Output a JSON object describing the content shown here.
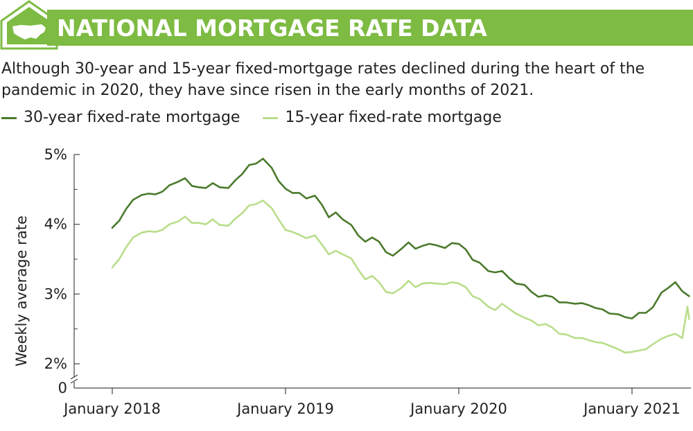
{
  "header": {
    "title": "NATIONAL MORTGAGE RATE DATA",
    "subtitle": "Although 30-year and 15-year fixed-mortgage rates declined during the heart of the pandemic in 2020, they have since risen in the early months of 2021.",
    "logo_icon": "house-with-us-map-icon",
    "banner_color": "#7dbb42"
  },
  "chart_data": {
    "type": "line",
    "title": "",
    "ylabel": "Weekly average rate",
    "xlabel": "",
    "ylim": [
      2,
      5
    ],
    "y_ticks": [
      "0",
      "2%",
      "3%",
      "4%",
      "5%"
    ],
    "y_axis_break": true,
    "x_ticks": [
      "January 2018",
      "January 2019",
      "January 2020",
      "January 2021"
    ],
    "x_tick_values": [
      2018.0,
      2019.0,
      2020.0,
      2021.0
    ],
    "grid": false,
    "legend_position": "top-left",
    "series": [
      {
        "name": "30-year fixed-rate mortgage",
        "color": "#4a7a2c",
        "x": [
          2018.0,
          2018.04,
          2018.08,
          2018.12,
          2018.17,
          2018.21,
          2018.25,
          2018.29,
          2018.33,
          2018.38,
          2018.42,
          2018.46,
          2018.5,
          2018.54,
          2018.58,
          2018.62,
          2018.67,
          2018.71,
          2018.75,
          2018.79,
          2018.83,
          2018.87,
          2018.92,
          2018.96,
          2019.0,
          2019.04,
          2019.08,
          2019.12,
          2019.17,
          2019.21,
          2019.25,
          2019.29,
          2019.33,
          2019.38,
          2019.42,
          2019.46,
          2019.5,
          2019.54,
          2019.58,
          2019.62,
          2019.67,
          2019.71,
          2019.75,
          2019.79,
          2019.83,
          2019.87,
          2019.92,
          2019.96,
          2020.0,
          2020.04,
          2020.08,
          2020.12,
          2020.17,
          2020.21,
          2020.25,
          2020.29,
          2020.33,
          2020.38,
          2020.42,
          2020.46,
          2020.5,
          2020.54,
          2020.58,
          2020.62,
          2020.67,
          2020.71,
          2020.75,
          2020.79,
          2020.83,
          2020.87,
          2020.92,
          2020.96,
          2021.0,
          2021.04,
          2021.08,
          2021.12,
          2021.17,
          2021.21,
          2021.25,
          2021.29,
          2021.33
        ],
        "values": [
          3.95,
          4.05,
          4.22,
          4.35,
          4.42,
          4.44,
          4.43,
          4.47,
          4.56,
          4.61,
          4.66,
          4.55,
          4.53,
          4.52,
          4.59,
          4.53,
          4.52,
          4.63,
          4.72,
          4.85,
          4.87,
          4.94,
          4.81,
          4.62,
          4.51,
          4.45,
          4.45,
          4.37,
          4.41,
          4.28,
          4.1,
          4.17,
          4.07,
          3.99,
          3.84,
          3.75,
          3.81,
          3.75,
          3.6,
          3.55,
          3.65,
          3.74,
          3.65,
          3.69,
          3.72,
          3.7,
          3.66,
          3.73,
          3.72,
          3.64,
          3.49,
          3.45,
          3.33,
          3.31,
          3.33,
          3.23,
          3.15,
          3.13,
          3.03,
          2.96,
          2.98,
          2.96,
          2.88,
          2.88,
          2.86,
          2.87,
          2.84,
          2.8,
          2.78,
          2.72,
          2.71,
          2.67,
          2.65,
          2.73,
          2.73,
          2.81,
          3.02,
          3.09,
          3.17,
          3.04,
          2.97
        ]
      },
      {
        "name": "15-year fixed-rate mortgage",
        "color": "#b9dd8a",
        "x": [
          2018.0,
          2018.04,
          2018.08,
          2018.12,
          2018.17,
          2018.21,
          2018.25,
          2018.29,
          2018.33,
          2018.38,
          2018.42,
          2018.46,
          2018.5,
          2018.54,
          2018.58,
          2018.62,
          2018.67,
          2018.71,
          2018.75,
          2018.79,
          2018.83,
          2018.87,
          2018.92,
          2018.96,
          2019.0,
          2019.04,
          2019.08,
          2019.12,
          2019.17,
          2019.21,
          2019.25,
          2019.29,
          2019.33,
          2019.38,
          2019.42,
          2019.46,
          2019.5,
          2019.54,
          2019.58,
          2019.62,
          2019.67,
          2019.71,
          2019.75,
          2019.79,
          2019.83,
          2019.87,
          2019.92,
          2019.96,
          2020.0,
          2020.04,
          2020.08,
          2020.12,
          2020.17,
          2020.21,
          2020.25,
          2020.29,
          2020.33,
          2020.38,
          2020.42,
          2020.46,
          2020.5,
          2020.54,
          2020.58,
          2020.62,
          2020.67,
          2020.71,
          2020.75,
          2020.79,
          2020.83,
          2020.87,
          2020.92,
          2020.96,
          2021.0,
          2021.04,
          2021.08,
          2021.12,
          2021.17,
          2021.21,
          2021.25,
          2021.29,
          2021.32,
          2021.33
        ],
        "values": [
          3.38,
          3.5,
          3.67,
          3.81,
          3.88,
          3.9,
          3.89,
          3.92,
          4.0,
          4.04,
          4.11,
          4.02,
          4.02,
          4.0,
          4.07,
          3.99,
          3.98,
          4.08,
          4.16,
          4.27,
          4.29,
          4.34,
          4.23,
          4.07,
          3.92,
          3.89,
          3.85,
          3.8,
          3.84,
          3.71,
          3.57,
          3.62,
          3.57,
          3.51,
          3.35,
          3.21,
          3.26,
          3.17,
          3.03,
          3.01,
          3.09,
          3.19,
          3.1,
          3.15,
          3.16,
          3.15,
          3.14,
          3.17,
          3.15,
          3.1,
          2.97,
          2.93,
          2.82,
          2.77,
          2.86,
          2.79,
          2.72,
          2.66,
          2.62,
          2.55,
          2.57,
          2.52,
          2.43,
          2.42,
          2.37,
          2.37,
          2.34,
          2.31,
          2.3,
          2.26,
          2.21,
          2.16,
          2.17,
          2.19,
          2.21,
          2.28,
          2.36,
          2.4,
          2.43,
          2.37,
          2.82,
          2.64
        ]
      }
    ]
  }
}
